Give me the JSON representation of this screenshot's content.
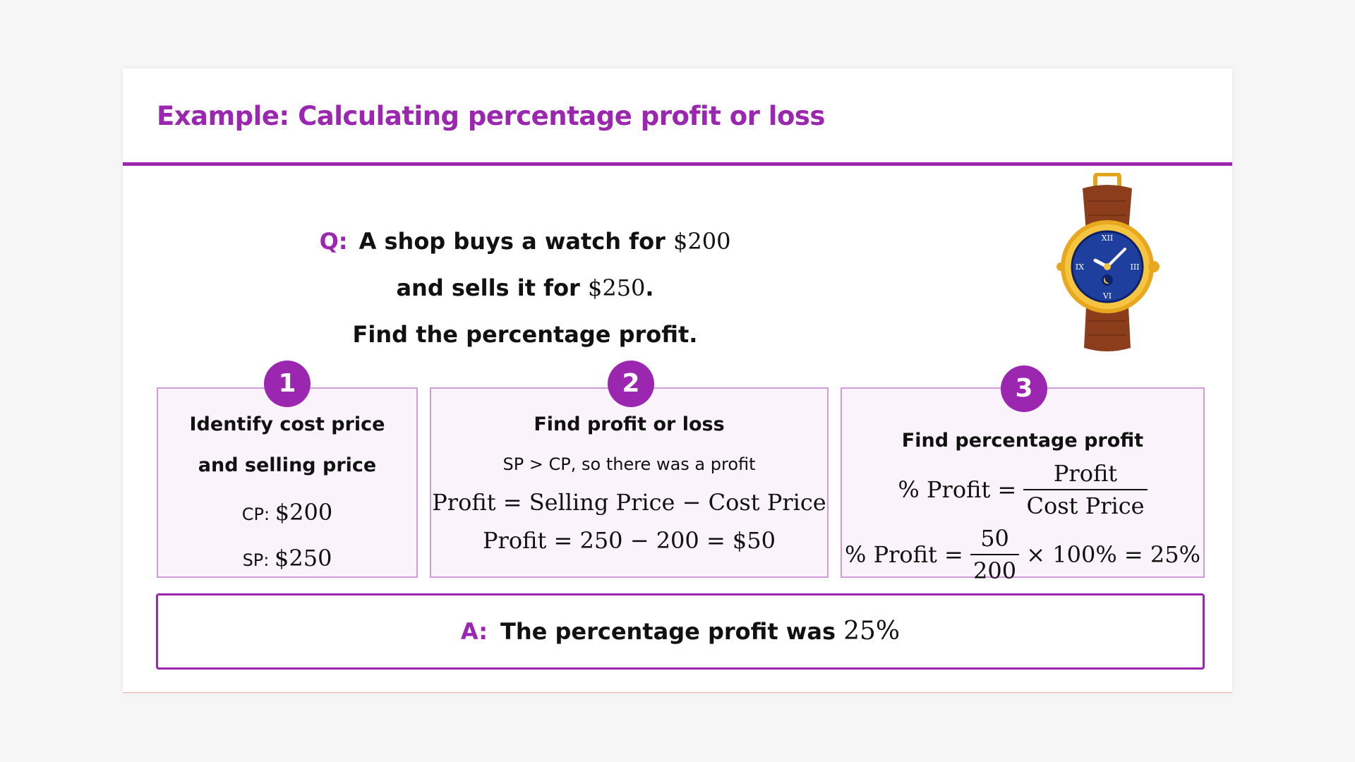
{
  "title": "Example: Calculating percentage profit or loss",
  "question": {
    "label": "Q:",
    "text1": "A shop buys a watch for ",
    "price1": "$200",
    "text2": " and sells it for ",
    "price2": "$250",
    "text3": ".",
    "line2": "Find the percentage profit."
  },
  "steps": [
    {
      "number": "1",
      "heading": "Identify cost price and selling price",
      "cp_label": "CP: ",
      "cp_value": "$200",
      "sp_label": "SP: ",
      "sp_value": "$250"
    },
    {
      "number": "2",
      "heading": "Find profit or loss",
      "note": "SP > CP, so there was a profit",
      "eq1": "Profit = Selling Price − Cost Price",
      "eq2": "Profit = 250 − 200 = $50"
    },
    {
      "number": "3",
      "heading": "Find percentage profit",
      "f1_lhs": "% Profit = ",
      "f1_num": "Profit",
      "f1_den": "Cost Price",
      "f2_lhs": "% Profit = ",
      "f2_num": "50",
      "f2_den": "200",
      "f2_rhs": " × 100% = 25%"
    }
  ],
  "answer": {
    "label": "A:",
    "text": "The percentage profit was ",
    "value": "25%"
  },
  "colors": {
    "accent": "#9b27b0",
    "box_border": "#d49bdc",
    "box_fill": "#faf3fb"
  }
}
